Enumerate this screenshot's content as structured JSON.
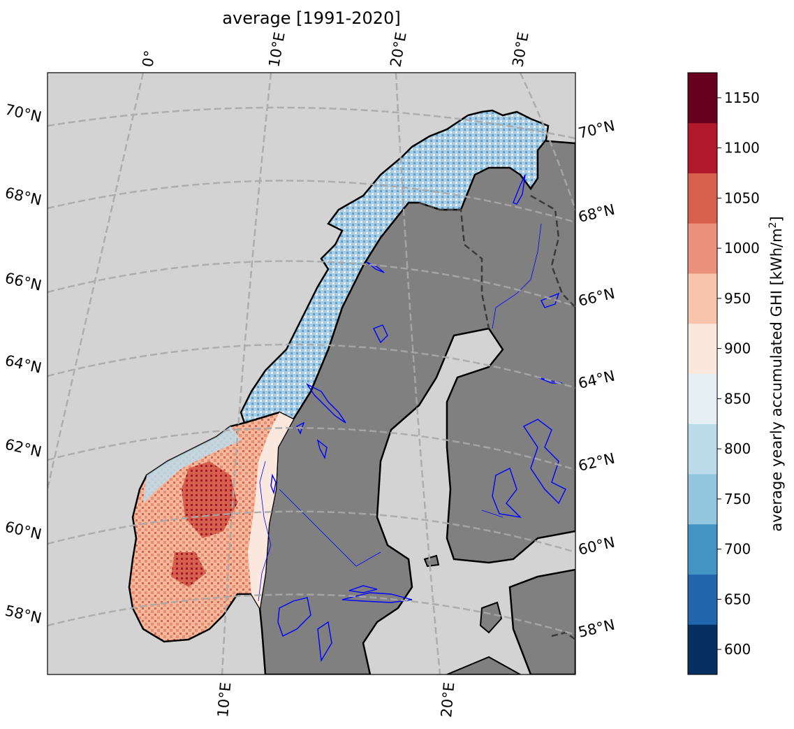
{
  "map": {
    "title": "average [1991-2020]",
    "lon_labels_top": [
      "0°",
      "10°E",
      "20°E",
      "30°E"
    ],
    "lon_labels_bottom": [
      "10°E",
      "20°E"
    ],
    "lat_labels_left": [
      "70°N",
      "68°N",
      "66°N",
      "64°N",
      "62°N",
      "60°N",
      "58°N"
    ],
    "lat_labels_right": [
      "70°N",
      "68°N",
      "66°N",
      "64°N",
      "62°N",
      "60°N",
      "58°N"
    ],
    "colors": {
      "ocean": "#d3d3d3",
      "land": "#808080",
      "gridline": "#a9a9a9",
      "coastline": "#000000",
      "lakes": "#0000ff",
      "border": "#3a3a3a"
    }
  },
  "colorbar": {
    "label": "average yearly accumulated GHI [kWh/m",
    "label_sup": "2",
    "label_end": "]",
    "ticks": [
      "600",
      "650",
      "700",
      "750",
      "800",
      "850",
      "900",
      "950",
      "1000",
      "1050",
      "1100",
      "1150"
    ],
    "colors": [
      "#053061",
      "#2166ac",
      "#4393c3",
      "#92c5de",
      "#bcdbea",
      "#e6eff4",
      "#fae7de",
      "#f8c4ab",
      "#eb907a",
      "#d6604d",
      "#b2182b",
      "#67001f"
    ]
  }
}
